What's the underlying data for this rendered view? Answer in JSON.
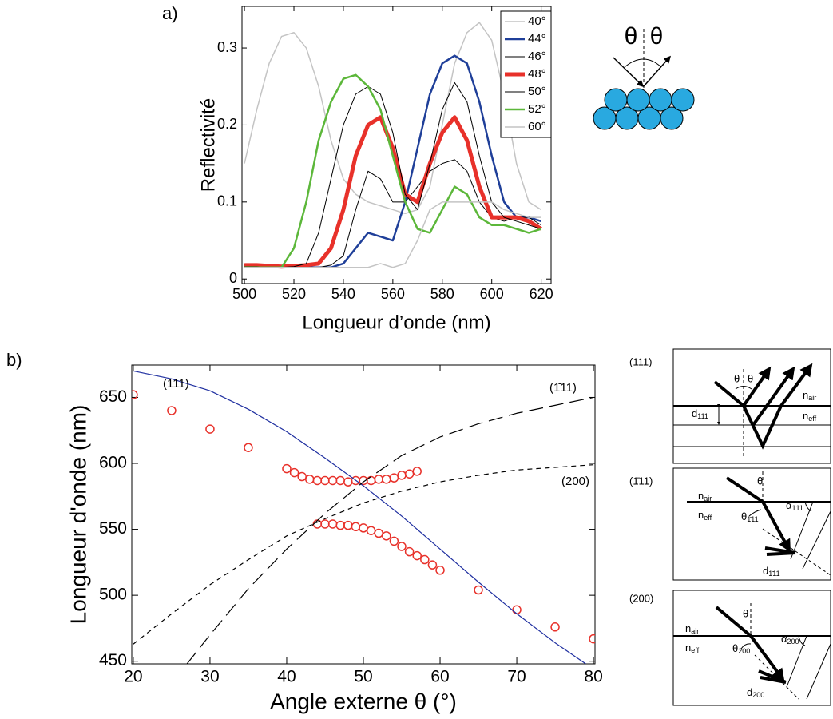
{
  "panel_labels": [
    "a)",
    "b)"
  ],
  "chart_data": [
    {
      "type": "line",
      "xlabel": "Longueur d’onde (nm)",
      "ylabel": "Reflectivité",
      "x": [
        500,
        505,
        510,
        515,
        520,
        525,
        530,
        535,
        540,
        545,
        550,
        555,
        560,
        565,
        570,
        575,
        580,
        585,
        590,
        595,
        600,
        605,
        610,
        615,
        620
      ],
      "xlim": [
        499,
        624
      ],
      "ylim": [
        -0.006,
        0.354
      ],
      "xticks": [
        500,
        520,
        540,
        560,
        580,
        600,
        620
      ],
      "yticks": [
        0,
        0.1,
        0.2,
        0.3
      ],
      "legend": "top-right",
      "series": [
        {
          "name": "40°",
          "color": "#c4c4c4",
          "width": 1.5,
          "values": [
            0.15,
            0.22,
            0.28,
            0.315,
            0.32,
            0.3,
            0.25,
            0.18,
            0.13,
            0.11,
            0.1,
            0.095,
            0.09,
            0.085,
            0.09,
            0.12,
            0.2,
            0.28,
            0.32,
            0.333,
            0.31,
            0.24,
            0.15,
            0.1,
            0.09
          ]
        },
        {
          "name": "44°",
          "color": "#1f3f99",
          "width": 2.5,
          "values": [
            0.018,
            0.017,
            0.016,
            0.015,
            0.015,
            0.015,
            0.015,
            0.015,
            0.02,
            0.04,
            0.06,
            0.055,
            0.05,
            0.1,
            0.17,
            0.24,
            0.28,
            0.29,
            0.28,
            0.23,
            0.16,
            0.1,
            0.08,
            0.08,
            0.075
          ]
        },
        {
          "name": "46°",
          "color": "#000000",
          "width": 1,
          "values": [
            0.018,
            0.017,
            0.016,
            0.015,
            0.015,
            0.015,
            0.015,
            0.018,
            0.03,
            0.09,
            0.14,
            0.13,
            0.1,
            0.1,
            0.12,
            0.14,
            0.15,
            0.155,
            0.14,
            0.1,
            0.08,
            0.075,
            0.08,
            0.08,
            0.07
          ]
        },
        {
          "name": "48°",
          "color": "#e8312a",
          "width": 5,
          "values": [
            0.018,
            0.018,
            0.017,
            0.016,
            0.017,
            0.018,
            0.02,
            0.04,
            0.09,
            0.16,
            0.2,
            0.21,
            0.17,
            0.11,
            0.1,
            0.15,
            0.19,
            0.21,
            0.18,
            0.12,
            0.08,
            0.08,
            0.08,
            0.075,
            0.065
          ]
        },
        {
          "name": "50°",
          "color": "#000000",
          "width": 1,
          "values": [
            0.016,
            0.016,
            0.015,
            0.015,
            0.016,
            0.02,
            0.06,
            0.13,
            0.2,
            0.24,
            0.25,
            0.24,
            0.19,
            0.11,
            0.09,
            0.15,
            0.22,
            0.255,
            0.23,
            0.16,
            0.1,
            0.08,
            0.075,
            0.07,
            0.065
          ]
        },
        {
          "name": "52°",
          "color": "#5cb73a",
          "width": 2.5,
          "values": [
            0.015,
            0.015,
            0.015,
            0.015,
            0.04,
            0.1,
            0.18,
            0.23,
            0.26,
            0.265,
            0.25,
            0.22,
            0.16,
            0.1,
            0.065,
            0.06,
            0.09,
            0.12,
            0.11,
            0.08,
            0.07,
            0.07,
            0.065,
            0.06,
            0.065
          ]
        },
        {
          "name": "60°",
          "color": "#c4c4c4",
          "width": 1.5,
          "values": [
            0.015,
            0.015,
            0.015,
            0.015,
            0.015,
            0.015,
            0.015,
            0.015,
            0.015,
            0.015,
            0.015,
            0.02,
            0.015,
            0.02,
            0.05,
            0.09,
            0.1,
            0.1,
            0.1,
            0.1,
            0.1,
            0.09,
            0.085,
            0.08,
            0.08
          ]
        }
      ]
    },
    {
      "type": "line",
      "xlabel": "Angle externe θ (°)",
      "ylabel": "Longueur d'onde (nm)",
      "xlim": [
        19.8,
        80.2
      ],
      "ylim": [
        448,
        674.5
      ],
      "xticks": [
        20,
        30,
        40,
        50,
        60,
        70,
        80
      ],
      "yticks": [
        450,
        500,
        550,
        600,
        650
      ],
      "annotations": [
        "(111)",
        "(1̄11)",
        "(200)"
      ],
      "series": [
        {
          "style": "circles",
          "color": "#e8312a",
          "x": [
            20,
            25,
            30,
            35,
            40,
            41,
            42,
            43,
            44,
            45,
            46,
            47,
            48,
            49,
            50,
            51,
            52,
            53,
            54,
            55,
            56,
            57,
            44,
            45,
            46,
            47,
            48,
            49,
            50,
            51,
            52,
            53,
            54,
            55,
            56,
            57,
            58,
            59,
            60,
            65,
            70,
            75,
            80
          ],
          "values": [
            652,
            640,
            626,
            612,
            596,
            593,
            590,
            588,
            587,
            587,
            587,
            587,
            586,
            587,
            587,
            587,
            588,
            588,
            589,
            591,
            592,
            594,
            554,
            554,
            554,
            553,
            553,
            552,
            551,
            549,
            547,
            545,
            541,
            537,
            533,
            530,
            527,
            523,
            519,
            504,
            489,
            476,
            467
          ]
        },
        {
          "style": "solid",
          "color": "#1f2fa0",
          "x": [
            20,
            25,
            30,
            35,
            40,
            45,
            50,
            55,
            60,
            65,
            70,
            75,
            79
          ],
          "values": [
            670,
            664,
            655,
            641,
            624,
            604,
            583,
            560,
            535,
            510,
            486,
            464,
            448
          ]
        },
        {
          "style": "long-dash",
          "color": "#000000",
          "x": [
            27,
            30,
            35,
            40,
            45,
            50,
            55,
            60,
            65,
            70,
            75,
            80
          ],
          "values": [
            448,
            470,
            505,
            535,
            562,
            586,
            606,
            620,
            630,
            638,
            644,
            650
          ]
        },
        {
          "style": "short-dash",
          "color": "#000000",
          "x": [
            20,
            25,
            30,
            35,
            40,
            45,
            50,
            55,
            60,
            65,
            70,
            75,
            80
          ],
          "values": [
            463,
            486,
            508,
            527,
            545,
            558,
            570,
            579,
            586,
            591,
            595,
            597,
            599
          ]
        }
      ]
    }
  ],
  "schematic": {
    "angles": [
      "θ",
      "θ"
    ]
  },
  "diagrams": [
    {
      "label": "(111)",
      "angles": [
        "θ",
        "θ"
      ],
      "media": [
        {
          "base": "n",
          "sub": "air"
        },
        {
          "base": "n",
          "sub": "eff"
        }
      ],
      "spacing": {
        "base": "d",
        "sub": "111"
      }
    },
    {
      "label": "(1̄11)",
      "angles": [
        "θ"
      ],
      "media": [
        {
          "base": "n",
          "sub": "air"
        },
        {
          "base": "n",
          "sub": "eff"
        }
      ],
      "refracted": {
        "base": "θ",
        "sub": "1̄11"
      },
      "tilt": {
        "base": "α",
        "sub": "1̄11"
      },
      "spacing": {
        "base": "d",
        "sub": "1̄11"
      }
    },
    {
      "label": "(200)",
      "angles": [
        "θ"
      ],
      "media": [
        {
          "base": "n",
          "sub": "air"
        },
        {
          "base": "n",
          "sub": "eff"
        }
      ],
      "refracted": {
        "base": "θ",
        "sub": "200"
      },
      "tilt": {
        "base": "α",
        "sub": "200"
      },
      "spacing": {
        "base": "d",
        "sub": "200"
      }
    }
  ]
}
